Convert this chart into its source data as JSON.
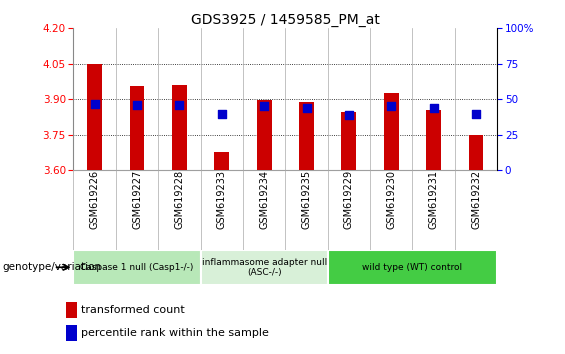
{
  "title": "GDS3925 / 1459585_PM_at",
  "samples": [
    "GSM619226",
    "GSM619227",
    "GSM619228",
    "GSM619233",
    "GSM619234",
    "GSM619235",
    "GSM619229",
    "GSM619230",
    "GSM619231",
    "GSM619232"
  ],
  "bar_values": [
    4.048,
    3.955,
    3.958,
    3.675,
    3.895,
    3.888,
    3.845,
    3.925,
    3.855,
    3.748
  ],
  "percentile_values": [
    3.878,
    3.873,
    3.876,
    3.835,
    3.871,
    3.862,
    3.834,
    3.872,
    3.862,
    3.835
  ],
  "ymin": 3.6,
  "ymax": 4.2,
  "yticks": [
    3.6,
    3.75,
    3.9,
    4.05,
    4.2
  ],
  "right_yticks": [
    0,
    25,
    50,
    75,
    100
  ],
  "bar_color": "#cc0000",
  "percentile_color": "#0000cc",
  "groups": [
    {
      "label": "Caspase 1 null (Casp1-/-)",
      "start": 0,
      "end": 3,
      "color": "#b8e8b8"
    },
    {
      "label": "inflammasome adapter null\n(ASC-/-)",
      "start": 3,
      "end": 6,
      "color": "#d8f0d8"
    },
    {
      "label": "wild type (WT) control",
      "start": 6,
      "end": 10,
      "color": "#44cc44"
    }
  ],
  "xlabel_genotype": "genotype/variation",
  "legend_bar": "transformed count",
  "legend_pct": "percentile rank within the sample",
  "bar_width": 0.35,
  "percentile_marker_size": 35
}
